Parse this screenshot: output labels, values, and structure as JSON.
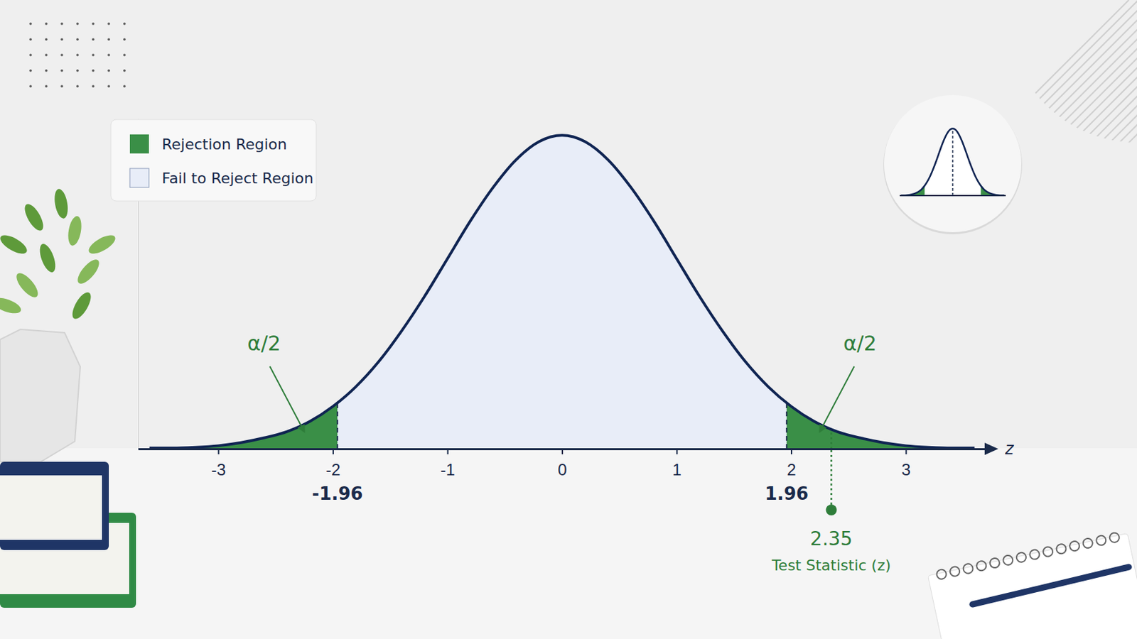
{
  "chart_data": {
    "type": "area",
    "x": [
      -3.6,
      -3.4,
      -3.2,
      -3.0,
      -2.8,
      -2.6,
      -2.4,
      -2.2,
      -2.0,
      -1.8,
      -1.6,
      -1.4,
      -1.2,
      -1.0,
      -0.8,
      -0.6,
      -0.4,
      -0.2,
      0,
      0.2,
      0.4,
      0.6,
      0.8,
      1.0,
      1.2,
      1.4,
      1.6,
      1.8,
      2.0,
      2.2,
      2.4,
      2.6,
      2.8,
      3.0,
      3.2,
      3.4,
      3.6
    ],
    "values": [
      0.001,
      0.001,
      0.002,
      0.004,
      0.008,
      0.014,
      0.022,
      0.035,
      0.054,
      0.079,
      0.111,
      0.15,
      0.194,
      0.242,
      0.29,
      0.333,
      0.368,
      0.391,
      0.399,
      0.391,
      0.368,
      0.333,
      0.29,
      0.242,
      0.194,
      0.15,
      0.111,
      0.079,
      0.054,
      0.035,
      0.022,
      0.014,
      0.008,
      0.004,
      0.002,
      0.001,
      0.001
    ],
    "color": "#0f2452",
    "xlim": [
      -3.7,
      3.7
    ],
    "xticks": [
      -3,
      -2,
      -1,
      0,
      1,
      2,
      3
    ],
    "ylim": [
      0,
      0.42
    ],
    "tick_labels": "x",
    "x_label": "z",
    "critical_values": [
      -1.96,
      1.96
    ],
    "alpha_labels": [
      "α/2",
      "α/2"
    ],
    "test_statistic": {
      "value": 2.35,
      "label": "Test Statistic (z)"
    },
    "regions": [
      {
        "name": "Rejection Region",
        "color": "#3a8f47"
      },
      {
        "name": "Fail to Reject Region",
        "color": "#e8edf8"
      }
    ],
    "legend": "top-left"
  }
}
